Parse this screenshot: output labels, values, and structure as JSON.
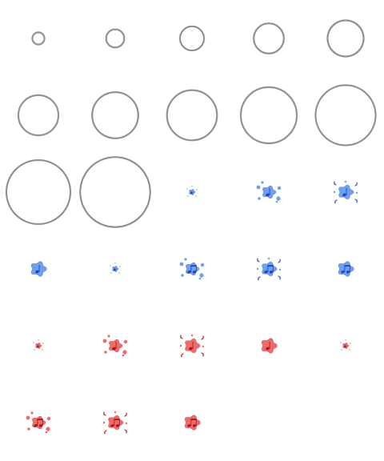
{
  "sheet": {
    "columns": 5,
    "rows": 6,
    "colors": {
      "ring_stroke": "#8f8f8f",
      "ring_highlight": "#d6d6d6",
      "blue_fill": "#6e9ff0",
      "blue_dark": "#1d47b8",
      "red_fill": "#ef6b6b",
      "red_dark": "#a81a1a"
    },
    "frames": [
      {
        "kind": "ring",
        "scale": 0.06
      },
      {
        "kind": "ring",
        "scale": 0.09
      },
      {
        "kind": "ring",
        "scale": 0.12
      },
      {
        "kind": "ring",
        "scale": 0.15
      },
      {
        "kind": "ring",
        "scale": 0.18
      },
      {
        "kind": "ring",
        "scale": 0.2
      },
      {
        "kind": "ring",
        "scale": 0.23
      },
      {
        "kind": "ring",
        "scale": 0.25
      },
      {
        "kind": "ring",
        "scale": 0.28
      },
      {
        "kind": "ring",
        "scale": 0.3
      },
      {
        "kind": "ring",
        "scale": 0.32
      },
      {
        "kind": "ring",
        "scale": 0.35
      },
      {
        "kind": "splat",
        "color": "blue",
        "stage": "small",
        "note": "none"
      },
      {
        "kind": "splat",
        "color": "blue",
        "stage": "burst",
        "note": "single"
      },
      {
        "kind": "splat",
        "color": "blue",
        "stage": "spread",
        "note": "single"
      },
      {
        "kind": "splat",
        "color": "blue",
        "stage": "blob",
        "note": "single"
      },
      {
        "kind": "splat",
        "color": "blue",
        "stage": "small",
        "note": "none"
      },
      {
        "kind": "splat",
        "color": "blue",
        "stage": "burst",
        "note": "double"
      },
      {
        "kind": "splat",
        "color": "blue",
        "stage": "spread",
        "note": "double"
      },
      {
        "kind": "splat",
        "color": "blue",
        "stage": "blob",
        "note": "double"
      },
      {
        "kind": "splat",
        "color": "red",
        "stage": "small",
        "note": "none"
      },
      {
        "kind": "splat",
        "color": "red",
        "stage": "burst",
        "note": "single"
      },
      {
        "kind": "splat",
        "color": "red",
        "stage": "spread",
        "note": "single"
      },
      {
        "kind": "splat",
        "color": "red",
        "stage": "blob",
        "note": "single"
      },
      {
        "kind": "splat",
        "color": "red",
        "stage": "small",
        "note": "none"
      },
      {
        "kind": "splat",
        "color": "red",
        "stage": "burst",
        "note": "double"
      },
      {
        "kind": "splat",
        "color": "red",
        "stage": "spread",
        "note": "double"
      },
      {
        "kind": "splat",
        "color": "red",
        "stage": "blob",
        "note": "double"
      }
    ]
  }
}
